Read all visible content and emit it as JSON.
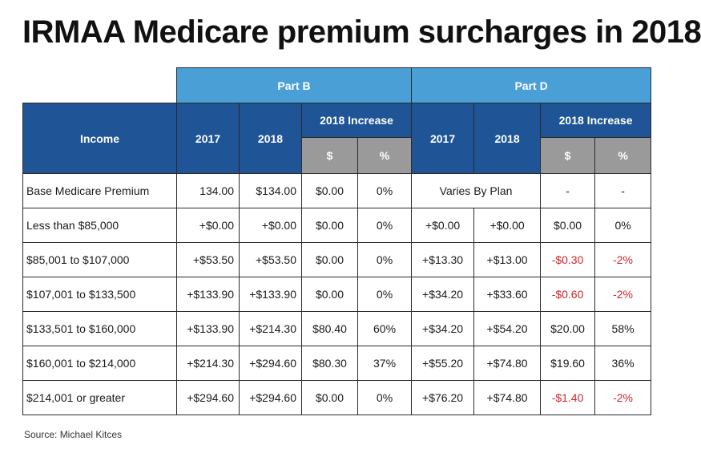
{
  "title": "IRMAA Medicare premium surcharges in 2018",
  "header": {
    "part_b": "Part B",
    "part_d": "Part D",
    "income": "Income",
    "y2017": "2017",
    "y2018": "2018",
    "increase": "2018 Increase",
    "dollar": "$",
    "percent": "%"
  },
  "rows": [
    {
      "income": "Base Medicare Premium",
      "b2017": "134.00",
      "b2018": "$134.00",
      "b_inc_d": "$0.00",
      "b_inc_p": "0%",
      "d_merged": "Varies By Plan",
      "d_inc_d": "-",
      "d_inc_p": "-"
    },
    {
      "income": "Less than $85,000",
      "b2017": "+$0.00",
      "b2018": "+$0.00",
      "b_inc_d": "$0.00",
      "b_inc_p": "0%",
      "d2017": "+$0.00",
      "d2018": "+$0.00",
      "d_inc_d": "$0.00",
      "d_inc_p": "0%"
    },
    {
      "income": "$85,001 to $107,000",
      "b2017": "+$53.50",
      "b2018": "+$53.50",
      "b_inc_d": "$0.00",
      "b_inc_p": "0%",
      "d2017": "+$13.30",
      "d2018": "+$13.00",
      "d_inc_d": "-$0.30",
      "d_inc_p": "-2%"
    },
    {
      "income": "$107,001 to $133,500",
      "b2017": "+$133.90",
      "b2018": "+$133.90",
      "b_inc_d": "$0.00",
      "b_inc_p": "0%",
      "d2017": "+$34.20",
      "d2018": "+$33.60",
      "d_inc_d": "-$0.60",
      "d_inc_p": "-2%"
    },
    {
      "income": "$133,501 to $160,000",
      "b2017": "+$133.90",
      "b2018": "+$214.30",
      "b_inc_d": "$80.40",
      "b_inc_p": "60%",
      "d2017": "+$34.20",
      "d2018": "+$54.20",
      "d_inc_d": "$20.00",
      "d_inc_p": "58%"
    },
    {
      "income": "$160,001 to $214,000",
      "b2017": "+$214.30",
      "b2018": "+$294.60",
      "b_inc_d": "$80.30",
      "b_inc_p": "37%",
      "d2017": "+$55.20",
      "d2018": "+$74.80",
      "d_inc_d": "$19.60",
      "d_inc_p": "36%"
    },
    {
      "income": "$214,001 or greater",
      "b2017": "+$294.60",
      "b2018": "+$294.60",
      "b_inc_d": "$0.00",
      "b_inc_p": "0%",
      "d2017": "+$76.20",
      "d2018": "+$74.80",
      "d_inc_d": "-$1.40",
      "d_inc_p": "-2%"
    }
  ],
  "colors": {
    "light_blue": "#4a9fd6",
    "dark_blue": "#1f5596",
    "gray": "#9a9a9a",
    "negative": "#d2232a"
  },
  "source": "Source: Michael Kitces"
}
